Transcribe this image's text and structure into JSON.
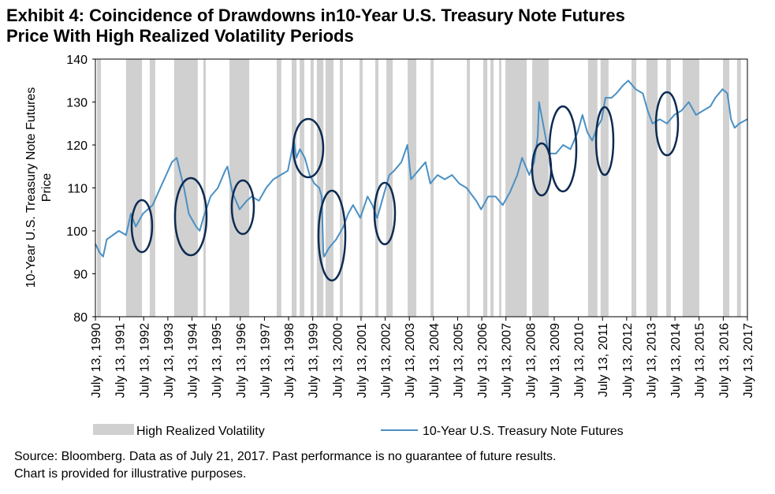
{
  "chart_data": {
    "type": "line",
    "title": [
      "Exhibit 4: Coincidence of Drawdowns in10-Year U.S. Treasury Note Futures",
      "Price With High Realized Volatility Periods"
    ],
    "y_label": [
      "10-Year U.S. Treasury Note Futures",
      "Price"
    ],
    "source": [
      "Source: Bloomberg.  Data as of July 21, 2017.  Past performance is no guarantee of future results.",
      "Chart is provided for illustrative purposes."
    ],
    "xlim": [
      1990.53,
      2017.53
    ],
    "ylim": [
      80,
      140
    ],
    "yticks": [
      80,
      90,
      100,
      110,
      120,
      130,
      140
    ],
    "xticks": [
      {
        "value": 1990.53,
        "label": "July 13, 1990"
      },
      {
        "value": 1991.53,
        "label": "July 13, 1991"
      },
      {
        "value": 1992.53,
        "label": "July 13, 1992"
      },
      {
        "value": 1993.53,
        "label": "July 13, 1993"
      },
      {
        "value": 1994.53,
        "label": "July 13, 1994"
      },
      {
        "value": 1995.53,
        "label": "July 13, 1995"
      },
      {
        "value": 1996.53,
        "label": "July 13, 1996"
      },
      {
        "value": 1997.53,
        "label": "July 13, 1997"
      },
      {
        "value": 1998.53,
        "label": "July 13, 1998"
      },
      {
        "value": 1999.53,
        "label": "July 13, 1999"
      },
      {
        "value": 2000.53,
        "label": "July 13, 2000"
      },
      {
        "value": 2001.53,
        "label": "July 13, 2001"
      },
      {
        "value": 2002.53,
        "label": "July 13, 2002"
      },
      {
        "value": 2003.53,
        "label": "July 13, 2003"
      },
      {
        "value": 2004.53,
        "label": "July 13, 2004"
      },
      {
        "value": 2005.53,
        "label": "July 13, 2005"
      },
      {
        "value": 2006.53,
        "label": "July 13, 2006"
      },
      {
        "value": 2007.53,
        "label": "July 13, 2007"
      },
      {
        "value": 2008.53,
        "label": "July 13, 2008"
      },
      {
        "value": 2009.53,
        "label": "July 13, 2009"
      },
      {
        "value": 2010.53,
        "label": "July 13, 2010"
      },
      {
        "value": 2011.53,
        "label": "July 13, 2011"
      },
      {
        "value": 2012.53,
        "label": "July 13, 2012"
      },
      {
        "value": 2013.53,
        "label": "July 13, 2013"
      },
      {
        "value": 2014.53,
        "label": "July 13, 2014"
      },
      {
        "value": 2015.53,
        "label": "July 13, 2015"
      },
      {
        "value": 2016.53,
        "label": "July 13, 2016"
      },
      {
        "value": 2017.53,
        "label": "July 13, 2017"
      }
    ],
    "shaded_periods": {
      "name": "High Realized Volatility",
      "color": "#d0d0d0",
      "ranges": [
        [
          1990.6,
          1990.76
        ],
        [
          1991.8,
          1992.46
        ],
        [
          1992.78,
          1993.01
        ],
        [
          1993.79,
          1994.77
        ],
        [
          1995.0,
          1995.1
        ],
        [
          1996.08,
          1996.9
        ],
        [
          1998.04,
          1998.23
        ],
        [
          1998.66,
          1998.86
        ],
        [
          1998.99,
          1999.18
        ],
        [
          1999.44,
          1999.57
        ],
        [
          1999.7,
          1999.97
        ],
        [
          2000.06,
          2000.39
        ],
        [
          2000.65,
          2000.78
        ],
        [
          2001.47,
          2001.6
        ],
        [
          2002.12,
          2002.25
        ],
        [
          2002.58,
          2002.84
        ],
        [
          2003.46,
          2003.82
        ],
        [
          2004.41,
          2004.54
        ],
        [
          2005.91,
          2006.04
        ],
        [
          2006.59,
          2006.76
        ],
        [
          2006.89,
          2007.02
        ],
        [
          2007.25,
          2007.34
        ],
        [
          2007.51,
          2008.39
        ],
        [
          2008.62,
          2009.3
        ],
        [
          2010.93,
          2011.32
        ],
        [
          2011.45,
          2011.78
        ],
        [
          2012.73,
          2012.93
        ],
        [
          2013.35,
          2013.81
        ],
        [
          2014.17,
          2014.36
        ],
        [
          2014.85,
          2015.54
        ],
        [
          2016.52,
          2016.78
        ],
        [
          2017.1,
          2017.26
        ]
      ]
    },
    "series": [
      {
        "name": "10-Year U.S. Treasury Note Futures",
        "color": "#4a90c4",
        "x": [
          1990.53,
          1990.7,
          1990.85,
          1991.0,
          1991.5,
          1991.8,
          1992.0,
          1992.2,
          1992.5,
          1992.9,
          1993.3,
          1993.7,
          1993.9,
          1994.2,
          1994.4,
          1994.7,
          1994.85,
          1995.0,
          1995.3,
          1995.6,
          1995.9,
          1996.0,
          1996.2,
          1996.5,
          1996.8,
          1997.0,
          1997.3,
          1997.6,
          1997.9,
          1998.2,
          1998.5,
          1998.75,
          1998.85,
          1999.0,
          1999.2,
          1999.4,
          1999.6,
          1999.8,
          1999.9,
          1999.97,
          2000.0,
          2000.2,
          2000.5,
          2000.8,
          2001.0,
          2001.2,
          2001.5,
          2001.8,
          2002.0,
          2002.2,
          2002.4,
          2002.7,
          2002.9,
          2003.2,
          2003.45,
          2003.6,
          2003.9,
          2004.2,
          2004.4,
          2004.7,
          2005.0,
          2005.3,
          2005.6,
          2005.9,
          2006.3,
          2006.5,
          2006.8,
          2007.1,
          2007.4,
          2007.7,
          2008.0,
          2008.2,
          2008.5,
          2008.7,
          2008.85,
          2008.9,
          2009.1,
          2009.3,
          2009.6,
          2009.9,
          2010.2,
          2010.5,
          2010.7,
          2010.9,
          2011.1,
          2011.3,
          2011.5,
          2011.65,
          2011.9,
          2012.1,
          2012.4,
          2012.6,
          2012.9,
          2013.2,
          2013.4,
          2013.6,
          2013.9,
          2014.2,
          2014.5,
          2014.8,
          2015.1,
          2015.4,
          2015.7,
          2016.0,
          2016.2,
          2016.5,
          2016.7,
          2016.85,
          2017.0,
          2017.2,
          2017.53
        ],
        "values": [
          97,
          95,
          94,
          98,
          100,
          99,
          104,
          101,
          104,
          106,
          111,
          116,
          117,
          110,
          104,
          101,
          100,
          103,
          108,
          110,
          114,
          115,
          109,
          105,
          107,
          108,
          107,
          110,
          112,
          113,
          114,
          121,
          117,
          119,
          117,
          113,
          111,
          110,
          108,
          95,
          94,
          96,
          98,
          101,
          104,
          106,
          103,
          108,
          106,
          103,
          107,
          113,
          114,
          116,
          120,
          112,
          114,
          116,
          111,
          113,
          112,
          113,
          111,
          110,
          107,
          105,
          108,
          108,
          106,
          109,
          113,
          117,
          113,
          116,
          122,
          130,
          124,
          118,
          118,
          120,
          119,
          123,
          127,
          123,
          121,
          124,
          126,
          131,
          131,
          132,
          134,
          135,
          133,
          132,
          128,
          125,
          126,
          125,
          127,
          128,
          130,
          127,
          128,
          129,
          131,
          133,
          132,
          126,
          124,
          125,
          126
        ]
      }
    ]
  }
}
